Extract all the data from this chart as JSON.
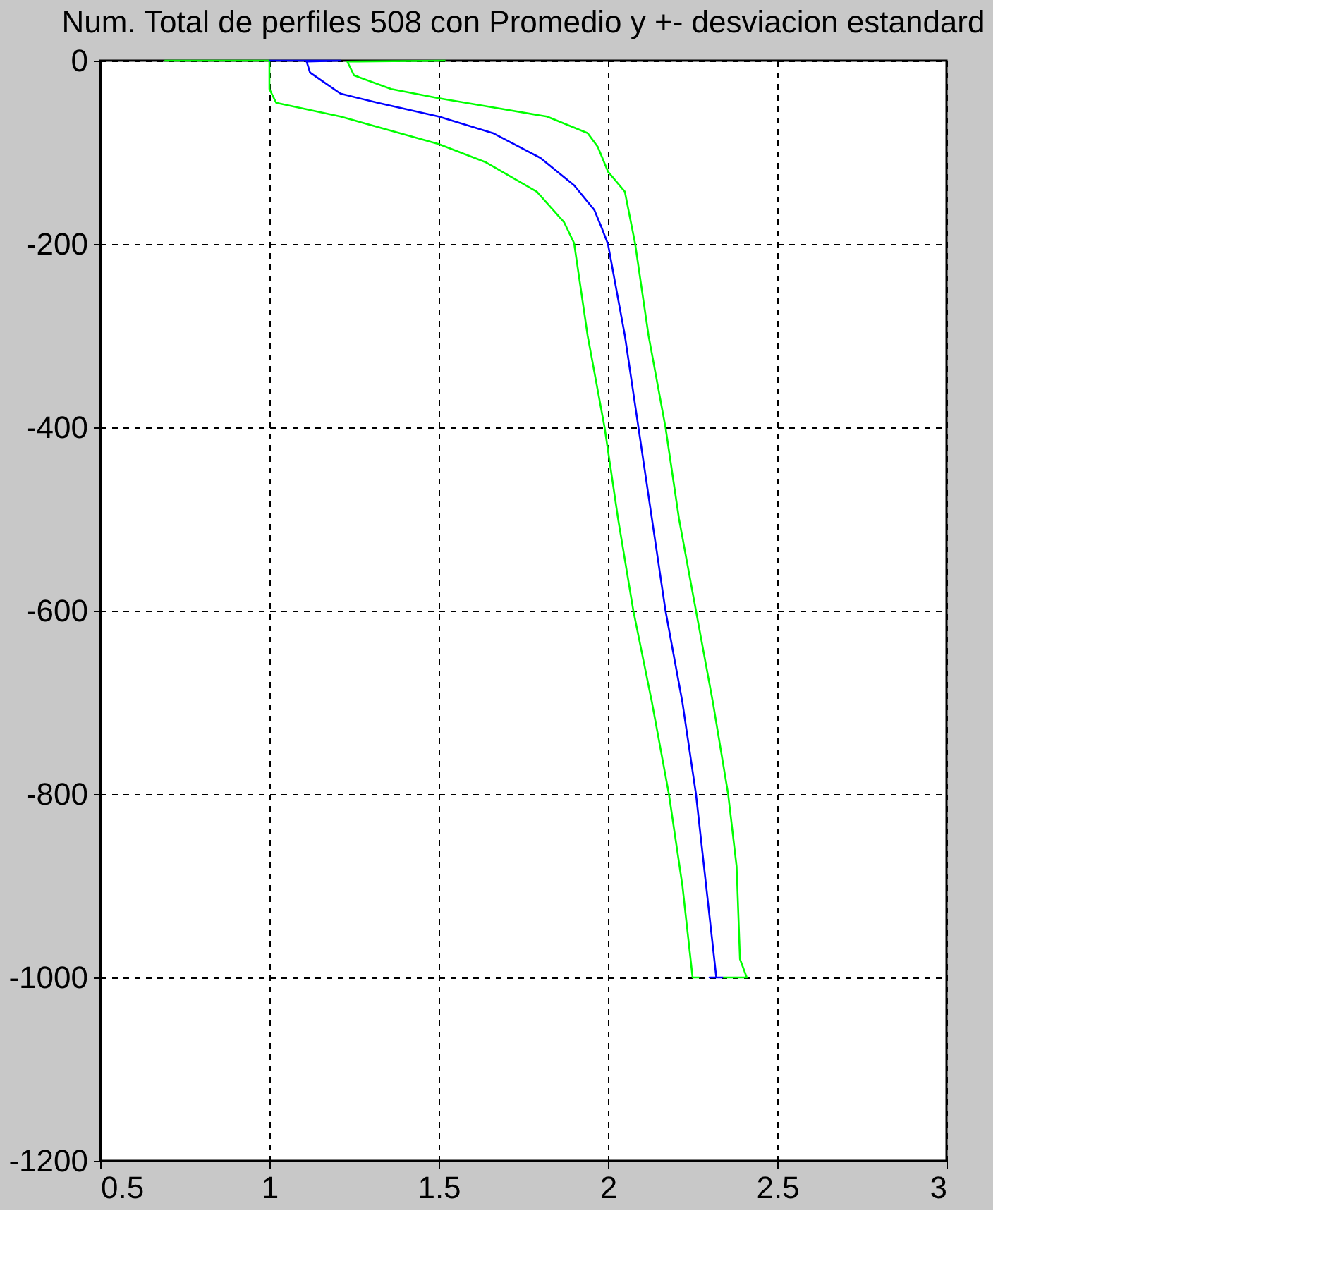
{
  "chart_data": {
    "type": "line",
    "title": "Num. Total de perfiles 508 con Promedio y +- desviacion estandard",
    "xlim": [
      0.5,
      3
    ],
    "ylim": [
      -1200,
      0
    ],
    "xticks": [
      0.5,
      1,
      1.5,
      2,
      2.5,
      3
    ],
    "yticks": [
      -1200,
      -1000,
      -800,
      -600,
      -400,
      -200,
      0
    ],
    "grid": true,
    "legend": false,
    "line_style": "solid",
    "marker": "none",
    "series": [
      {
        "color": "#00ff00",
        "x": [
          0.69,
          1.0,
          1.0,
          1.02,
          1.21,
          1.5,
          1.64,
          1.79,
          1.87,
          1.9,
          1.94,
          1.99,
          2.03,
          2.075,
          2.13,
          2.18,
          2.22,
          2.25,
          2.27
        ],
        "values": [
          0,
          0,
          -31,
          -46,
          -61,
          -91,
          -111,
          -143,
          -176,
          -199,
          -300,
          -400,
          -500,
          -600,
          -700,
          -800,
          -900,
          -1000,
          -1000
        ]
      },
      {
        "color": "#0000ff",
        "x": [
          1.0,
          1.21,
          1.11,
          1.12,
          1.21,
          1.32,
          1.5,
          1.66,
          1.8,
          1.9,
          1.96,
          1.98,
          2.0,
          2.05,
          2.09,
          2.13,
          2.17,
          2.22,
          2.26,
          2.29,
          2.32,
          2.3,
          2.34
        ],
        "values": [
          0,
          0,
          -1,
          -13,
          -36,
          -46,
          -61,
          -79,
          -106,
          -136,
          -163,
          -181,
          -200,
          -300,
          -400,
          -500,
          -600,
          -700,
          -800,
          -900,
          -1000,
          -1000,
          -1000
        ]
      },
      {
        "color": "#00ff00",
        "x": [
          1.52,
          1.23,
          1.25,
          1.36,
          1.5,
          1.66,
          1.82,
          1.94,
          1.97,
          2.0,
          2.05,
          2.08,
          2.12,
          2.17,
          2.21,
          2.26,
          2.31,
          2.355,
          2.38,
          2.39,
          2.41,
          2.34
        ],
        "values": [
          0,
          -1,
          -16,
          -31,
          -41,
          -51,
          -61,
          -79,
          -94,
          -121,
          -143,
          -199,
          -300,
          -400,
          -500,
          -600,
          -700,
          -800,
          -879,
          -980,
          -1000,
          -1000
        ]
      }
    ]
  }
}
